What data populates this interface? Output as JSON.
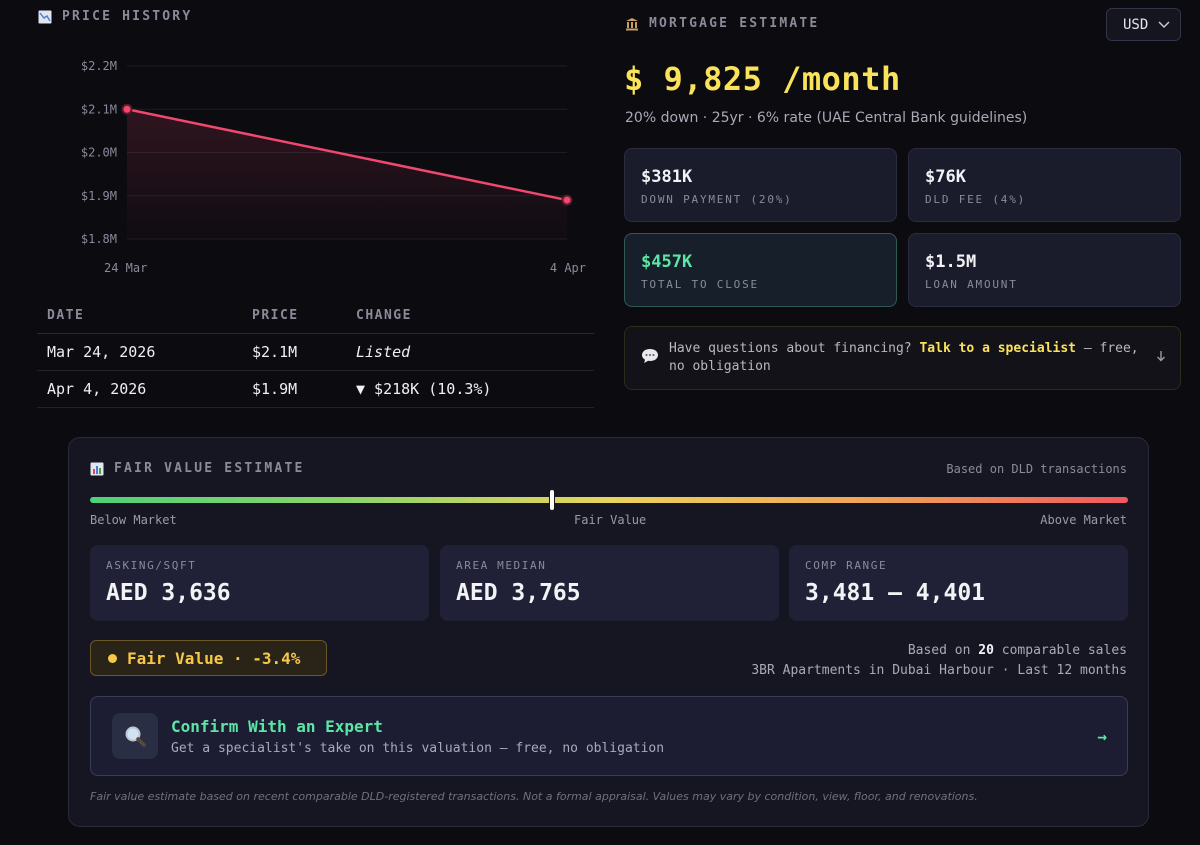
{
  "price_history": {
    "title": "PRICE HISTORY",
    "icon": "chart-down-icon",
    "table": {
      "headers": [
        "DATE",
        "PRICE",
        "CHANGE"
      ],
      "rows": [
        {
          "date": "Mar 24, 2026",
          "price": "$2.1M",
          "change": "Listed"
        },
        {
          "date": "Apr 4, 2026",
          "price": "$1.9M",
          "change": "▼ $218K (10.3%)"
        }
      ]
    }
  },
  "chart_data": {
    "type": "line",
    "x": [
      "24 Mar",
      "4 Apr"
    ],
    "series": [
      {
        "values": [
          2.1,
          1.89
        ]
      }
    ],
    "yticks": [
      "$2.2M",
      "$2.1M",
      "$2.0M",
      "$1.9M",
      "$1.8M"
    ],
    "ylim": [
      1.8,
      2.2
    ],
    "grid": true,
    "colors": {
      "line": "#f0486e"
    }
  },
  "mortgage": {
    "title": "MORTGAGE ESTIMATE",
    "icon": "bank-icon",
    "currency": "USD",
    "monthly": "$ 9,825 /month",
    "subtitle": "20% down · 25yr · 6% rate (UAE Central Bank guidelines)",
    "cards": [
      {
        "value": "$381K",
        "label": "DOWN PAYMENT (20%)"
      },
      {
        "value": "$76K",
        "label": "DLD FEE (4%)"
      },
      {
        "value": "$457K",
        "label": "TOTAL TO CLOSE"
      },
      {
        "value": "$1.5M",
        "label": "LOAN AMOUNT"
      }
    ],
    "cta": {
      "prefix": "Have questions about financing?",
      "link": "Talk to a specialist",
      "suffix": "— free, no obligation"
    }
  },
  "fair_value": {
    "title": "FAIR VALUE ESTIMATE",
    "icon": "bar-chart-icon",
    "basis": "Based on DLD transactions",
    "scale": {
      "left": "Below Market",
      "center": "Fair Value",
      "right": "Above Market",
      "position": 0.445
    },
    "cards": [
      {
        "label": "ASKING/SQFT",
        "value": "AED 3,636"
      },
      {
        "label": "AREA MEDIAN",
        "value": "AED 3,765"
      },
      {
        "label": "COMP RANGE",
        "value": "3,481 — 4,401"
      }
    ],
    "badge": "Fair Value · -3.4%",
    "comps": {
      "prefix": "Based on",
      "count": "20",
      "suffix": "comparable sales",
      "detail": "3BR Apartments in Dubai Harbour · Last 12 months"
    },
    "expert": {
      "title": "Confirm With an Expert",
      "subtitle": "Get a specialist's take on this valuation — free, no obligation",
      "arrow": "→"
    },
    "disclaimer": "Fair value estimate based on recent comparable DLD-registered transactions. Not a formal appraisal. Values may vary by condition, view, floor, and renovations."
  }
}
